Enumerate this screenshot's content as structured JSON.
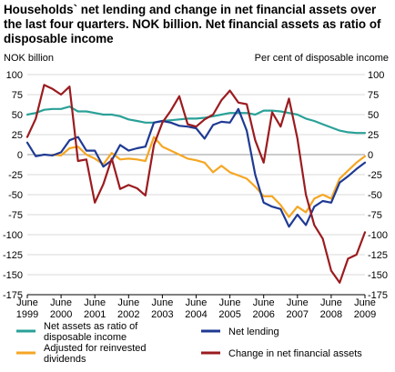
{
  "title": "Households` net lending and change in net financial assets over the last four quarters. NOK billion. Net financial assets as ratio of disposable income",
  "chart_data": {
    "type": "line",
    "title": "Households` net lending and change in net financial assets over the last four quarters. NOK billion. Net financial assets as ratio of disposable income",
    "ylabel_left": "NOK billion",
    "ylabel_right": "Per cent of disposable income",
    "ylim": [
      -175,
      100
    ],
    "yticks": [
      100,
      75,
      50,
      25,
      0,
      -25,
      -50,
      -75,
      -100,
      -125,
      -150,
      -175
    ],
    "xlim": [
      1999.5,
      2009.5
    ],
    "xticks": [
      {
        "x": 1999.5,
        "label_top": "June",
        "label_bottom": "1999"
      },
      {
        "x": 2000.5,
        "label_top": "June",
        "label_bottom": "2000"
      },
      {
        "x": 2001.5,
        "label_top": "June",
        "label_bottom": "2001"
      },
      {
        "x": 2002.5,
        "label_top": "June",
        "label_bottom": "2002"
      },
      {
        "x": 2003.5,
        "label_top": "June",
        "label_bottom": "2003"
      },
      {
        "x": 2004.5,
        "label_top": "June",
        "label_bottom": "2004"
      },
      {
        "x": 2005.5,
        "label_top": "June",
        "label_bottom": "2005"
      },
      {
        "x": 2006.5,
        "label_top": "June",
        "label_bottom": "2006"
      },
      {
        "x": 2007.5,
        "label_top": "June",
        "label_bottom": "2007"
      },
      {
        "x": 2008.5,
        "label_top": "June",
        "label_bottom": "2008"
      },
      {
        "x": 2009.5,
        "label_top": "June",
        "label_bottom": "2009"
      }
    ],
    "grid": "horizontal",
    "legend_position": "bottom",
    "series": [
      {
        "name": "Net assets as ratio of disposable income",
        "color": "#2aa198",
        "points": [
          [
            1999.5,
            50
          ],
          [
            1999.75,
            52
          ],
          [
            2000,
            56
          ],
          [
            2000.25,
            57
          ],
          [
            2000.5,
            57
          ],
          [
            2000.75,
            60
          ],
          [
            2001,
            54
          ],
          [
            2001.25,
            54
          ],
          [
            2001.5,
            52
          ],
          [
            2001.75,
            50
          ],
          [
            2002,
            50
          ],
          [
            2002.25,
            48
          ],
          [
            2002.5,
            44
          ],
          [
            2002.75,
            42
          ],
          [
            2003,
            40
          ],
          [
            2003.25,
            40
          ],
          [
            2003.5,
            42
          ],
          [
            2003.75,
            43
          ],
          [
            2004,
            44
          ],
          [
            2004.25,
            45
          ],
          [
            2004.5,
            45
          ],
          [
            2004.75,
            46
          ],
          [
            2005,
            48
          ],
          [
            2005.25,
            50
          ],
          [
            2005.5,
            52
          ],
          [
            2005.75,
            52
          ],
          [
            2006,
            52
          ],
          [
            2006.25,
            50
          ],
          [
            2006.5,
            55
          ],
          [
            2006.75,
            55
          ],
          [
            2007,
            54
          ],
          [
            2007.25,
            52
          ],
          [
            2007.5,
            50
          ],
          [
            2007.75,
            45
          ],
          [
            2008,
            42
          ],
          [
            2008.25,
            38
          ],
          [
            2008.5,
            34
          ],
          [
            2008.75,
            30
          ],
          [
            2009,
            28
          ],
          [
            2009.25,
            27
          ],
          [
            2009.5,
            27
          ]
        ]
      },
      {
        "name": "Adjusted  for reinvested dividends",
        "color": "#f5a623",
        "points": [
          [
            2000.25,
            0
          ],
          [
            2000.5,
            -1
          ],
          [
            2000.75,
            8
          ],
          [
            2001,
            10
          ],
          [
            2001.25,
            0
          ],
          [
            2001.5,
            -5
          ],
          [
            2001.75,
            -12
          ],
          [
            2002,
            2
          ],
          [
            2002.25,
            -6
          ],
          [
            2002.5,
            -5
          ],
          [
            2002.75,
            -6
          ],
          [
            2003,
            -8
          ],
          [
            2003.25,
            22
          ],
          [
            2003.5,
            10
          ],
          [
            2003.75,
            5
          ],
          [
            2004,
            0
          ],
          [
            2004.25,
            -5
          ],
          [
            2004.5,
            -7
          ],
          [
            2004.75,
            -10
          ],
          [
            2005,
            -22
          ],
          [
            2005.25,
            -14
          ],
          [
            2005.5,
            -22
          ],
          [
            2005.75,
            -26
          ],
          [
            2006,
            -30
          ],
          [
            2006.25,
            -40
          ],
          [
            2006.5,
            -52
          ],
          [
            2006.75,
            -52
          ],
          [
            2007,
            -63
          ],
          [
            2007.25,
            -78
          ],
          [
            2007.5,
            -65
          ],
          [
            2007.75,
            -72
          ],
          [
            2008,
            -55
          ],
          [
            2008.25,
            -50
          ],
          [
            2008.5,
            -55
          ],
          [
            2008.75,
            -30
          ],
          [
            2009,
            -20
          ],
          [
            2009.25,
            -10
          ],
          [
            2009.5,
            -2
          ]
        ]
      },
      {
        "name": "Net lending",
        "color": "#1f3a93",
        "points": [
          [
            1999.5,
            15
          ],
          [
            1999.75,
            -2
          ],
          [
            2000,
            0
          ],
          [
            2000.25,
            -1
          ],
          [
            2000.5,
            3
          ],
          [
            2000.75,
            18
          ],
          [
            2001,
            22
          ],
          [
            2001.25,
            5
          ],
          [
            2001.5,
            5
          ],
          [
            2001.75,
            -15
          ],
          [
            2002,
            -7
          ],
          [
            2002.25,
            12
          ],
          [
            2002.5,
            5
          ],
          [
            2002.75,
            8
          ],
          [
            2003,
            10
          ],
          [
            2003.25,
            40
          ],
          [
            2003.5,
            42
          ],
          [
            2003.75,
            40
          ],
          [
            2004,
            36
          ],
          [
            2004.25,
            35
          ],
          [
            2004.5,
            33
          ],
          [
            2004.75,
            20
          ],
          [
            2005,
            37
          ],
          [
            2005.25,
            41
          ],
          [
            2005.5,
            40
          ],
          [
            2005.75,
            57
          ],
          [
            2006,
            30
          ],
          [
            2006.25,
            -25
          ],
          [
            2006.5,
            -60
          ],
          [
            2006.75,
            -65
          ],
          [
            2007,
            -68
          ],
          [
            2007.25,
            -90
          ],
          [
            2007.5,
            -75
          ],
          [
            2007.75,
            -88
          ],
          [
            2008,
            -65
          ],
          [
            2008.25,
            -58
          ],
          [
            2008.5,
            -60
          ],
          [
            2008.75,
            -35
          ],
          [
            2009,
            -27
          ],
          [
            2009.25,
            -18
          ],
          [
            2009.5,
            -10
          ]
        ]
      },
      {
        "name": "Change in net financial assets",
        "color": "#9b1b1f",
        "points": [
          [
            1999.5,
            22
          ],
          [
            1999.75,
            45
          ],
          [
            2000,
            87
          ],
          [
            2000.25,
            82
          ],
          [
            2000.5,
            75
          ],
          [
            2000.75,
            85
          ],
          [
            2001,
            -8
          ],
          [
            2001.25,
            -6
          ],
          [
            2001.5,
            -60
          ],
          [
            2001.75,
            -37
          ],
          [
            2002,
            -5
          ],
          [
            2002.25,
            -43
          ],
          [
            2002.5,
            -38
          ],
          [
            2002.75,
            -42
          ],
          [
            2003,
            -51
          ],
          [
            2003.25,
            12
          ],
          [
            2003.5,
            40
          ],
          [
            2003.75,
            55
          ],
          [
            2004,
            73
          ],
          [
            2004.25,
            38
          ],
          [
            2004.5,
            35
          ],
          [
            2004.75,
            44
          ],
          [
            2005,
            50
          ],
          [
            2005.25,
            68
          ],
          [
            2005.5,
            80
          ],
          [
            2005.75,
            65
          ],
          [
            2006,
            63
          ],
          [
            2006.25,
            18
          ],
          [
            2006.5,
            -10
          ],
          [
            2006.75,
            53
          ],
          [
            2007,
            35
          ],
          [
            2007.25,
            70
          ],
          [
            2007.5,
            20
          ],
          [
            2007.75,
            -50
          ],
          [
            2008,
            -88
          ],
          [
            2008.25,
            -105
          ],
          [
            2008.5,
            -145
          ],
          [
            2008.75,
            -160
          ],
          [
            2009,
            -130
          ],
          [
            2009.25,
            -125
          ],
          [
            2009.5,
            -97
          ]
        ]
      }
    ]
  },
  "legend": [
    {
      "label_line1": "Net assets as ratio of",
      "label_line2": "disposable income",
      "color": "#2aa198"
    },
    {
      "label_line1": "Adjusted  for reinvested",
      "label_line2": "dividends",
      "color": "#f5a623"
    },
    {
      "label_line1": "Net lending",
      "label_line2": "",
      "color": "#1f3a93"
    },
    {
      "label_line1": "Change in net financial assets",
      "label_line2": "",
      "color": "#9b1b1f"
    }
  ]
}
